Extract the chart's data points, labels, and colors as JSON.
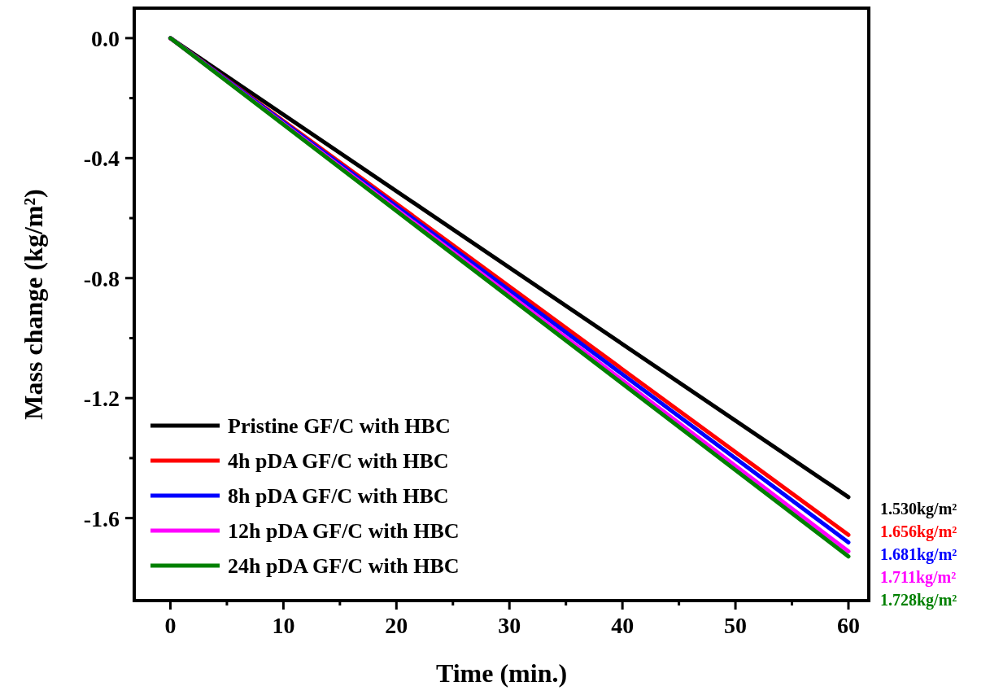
{
  "chart_data": {
    "type": "line",
    "xlabel": "Time (min.)",
    "ylabel": "Mass change (kg/m²)",
    "xlim": [
      -3.2,
      61.8
    ],
    "ylim": [
      -1.875,
      0.1
    ],
    "xticks": [
      0,
      {
        "value": 5,
        "label": null
      },
      10,
      {
        "value": 15,
        "label": null
      },
      20,
      {
        "value": 25,
        "label": null
      },
      30,
      {
        "value": 35,
        "label": null
      },
      40,
      {
        "value": 45,
        "label": null
      },
      50,
      {
        "value": 55,
        "label": null
      },
      60
    ],
    "yticks": [
      {
        "value": 0,
        "label": "0.0"
      },
      {
        "value": -0.2,
        "label": null
      },
      -0.4,
      {
        "value": -0.6,
        "label": null
      },
      -0.8,
      {
        "value": -1.0,
        "label": null
      },
      -1.2,
      {
        "value": -1.4,
        "label": null
      },
      -1.6
    ],
    "x": [
      0,
      60
    ],
    "series": [
      {
        "name": "Pristine GF/C with HBC",
        "color": "#000000",
        "values": [
          0,
          -1.53
        ]
      },
      {
        "name": "4h pDA GF/C with HBC",
        "color": "#ff0000",
        "values": [
          0,
          -1.656
        ]
      },
      {
        "name": "8h pDA GF/C with HBC",
        "color": "#0000ff",
        "values": [
          0,
          -1.681
        ]
      },
      {
        "name": "12h pDA GF/C with HBC",
        "color": "#ff00ff",
        "values": [
          0,
          -1.711
        ]
      },
      {
        "name": "24h pDA GF/C with HBC",
        "color": "#008000",
        "values": [
          0,
          -1.728
        ]
      }
    ],
    "annotations": [
      "1.530kg/m²",
      "1.656kg/m²",
      "1.681kg/m²",
      "1.711kg/m²",
      "1.728kg/m²"
    ],
    "legend": "bottom left",
    "grid": false,
    "marker": "none",
    "line_style": "solid"
  }
}
